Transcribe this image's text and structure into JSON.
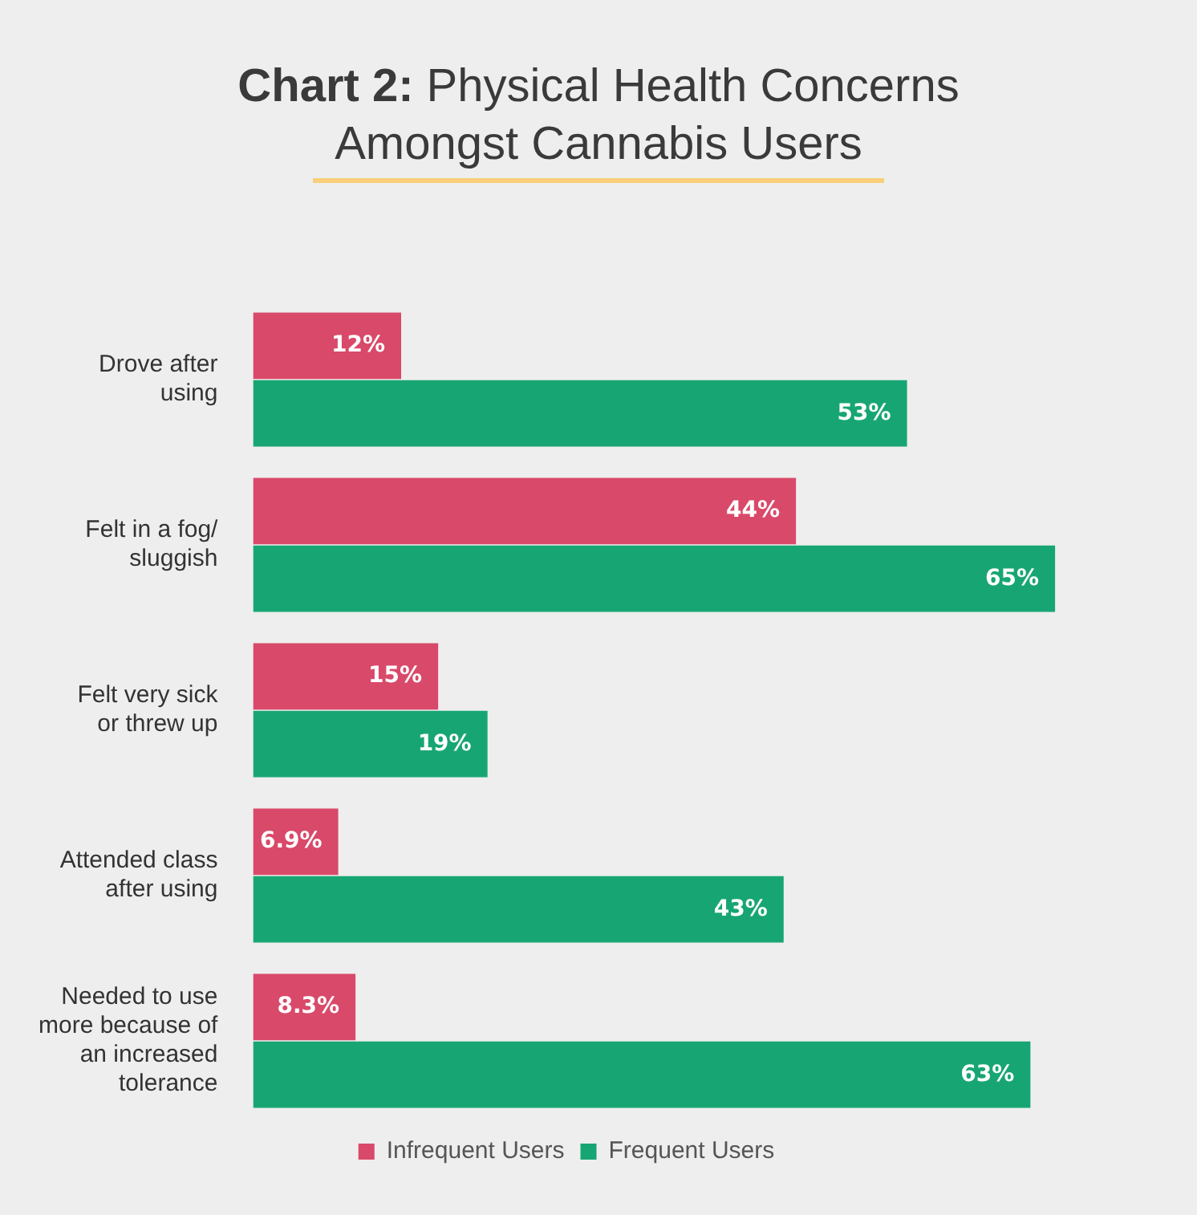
{
  "chart_data": {
    "type": "bar",
    "orientation": "horizontal",
    "title": "Chart 2: Physical Health Concerns Amongst Cannabis Users",
    "categories": [
      "Drove after using",
      "Felt in a fog/ sluggish",
      "Felt very sick or threw up",
      "Attended class after using",
      "Needed to use more because of an increased tolerance"
    ],
    "series": [
      {
        "name": "Infrequent Users",
        "color": "#d9496a",
        "values": [
          12,
          44,
          15,
          6.9,
          8.3
        ],
        "value_labels": [
          "12%",
          "44%",
          "15%",
          "6.9%",
          "8.3%"
        ]
      },
      {
        "name": "Frequent Users",
        "color": "#17a673",
        "values": [
          53,
          65,
          19,
          43,
          63
        ],
        "value_labels": [
          "53%",
          "65%",
          "19%",
          "43%",
          "63%"
        ]
      }
    ],
    "legend": "bottom"
  }
}
